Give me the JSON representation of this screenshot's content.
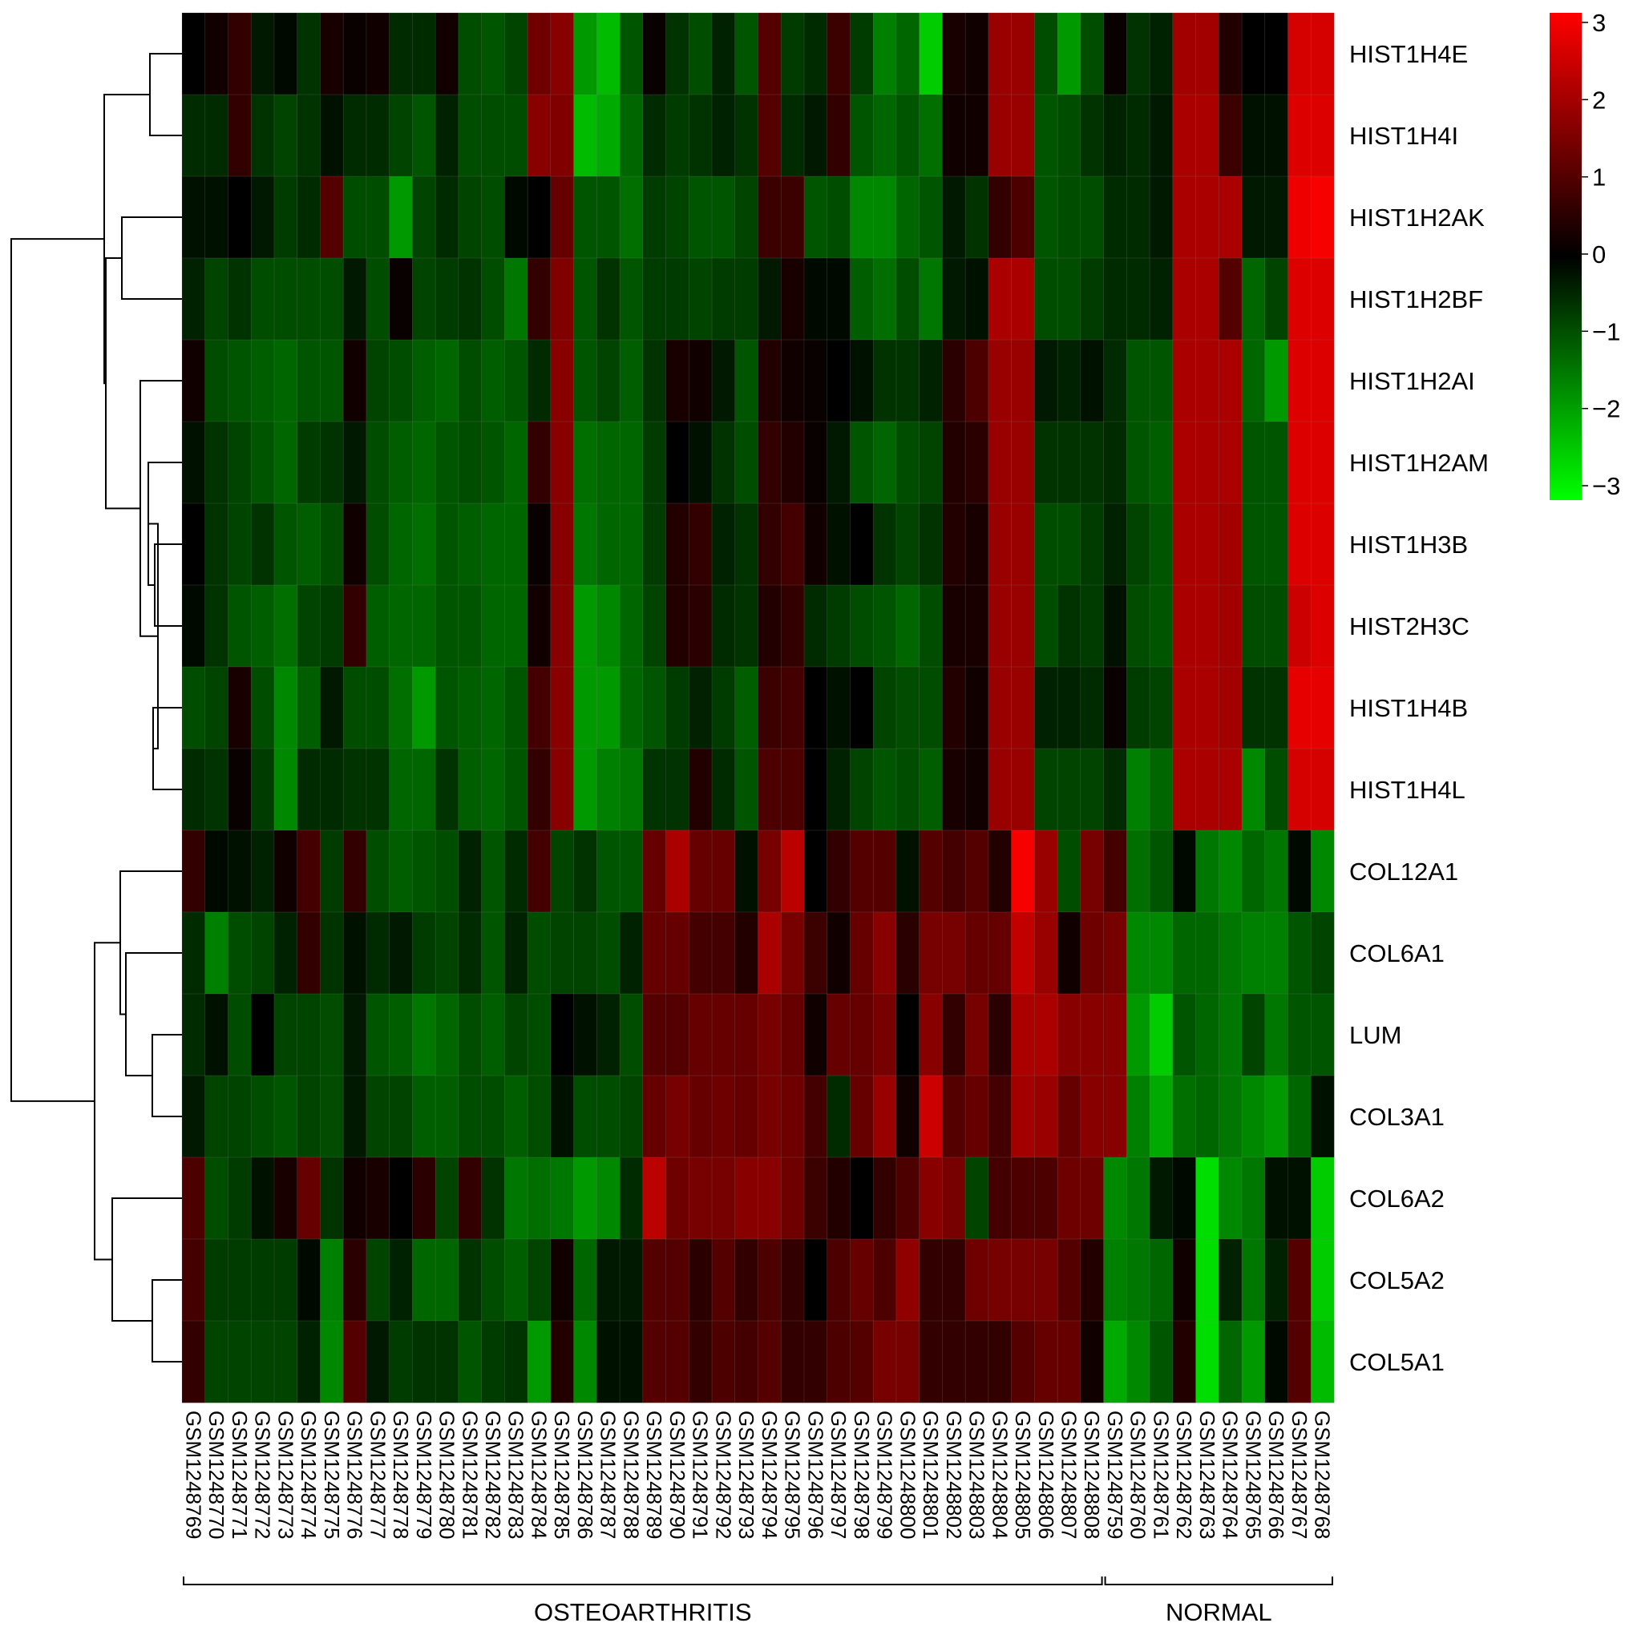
{
  "chart_data": {
    "type": "heatmap",
    "title": "",
    "xlabel": "",
    "ylabel": "",
    "rows": [
      "HIST1H4E",
      "HIST1H4I",
      "HIST1H2AK",
      "HIST1H2BF",
      "HIST1H2AI",
      "HIST1H2AM",
      "HIST1H3B",
      "HIST2H3C",
      "HIST1H4B",
      "HIST1H4L",
      "COL12A1",
      "COL6A1",
      "LUM",
      "COL3A1",
      "COL6A2",
      "COL5A2",
      "COL5A1"
    ],
    "columns": [
      "GSM1248769",
      "GSM1248770",
      "GSM1248771",
      "GSM1248772",
      "GSM1248773",
      "GSM1248774",
      "GSM1248775",
      "GSM1248776",
      "GSM1248777",
      "GSM1248778",
      "GSM1248779",
      "GSM1248780",
      "GSM1248781",
      "GSM1248782",
      "GSM1248783",
      "GSM1248784",
      "GSM1248785",
      "GSM1248786",
      "GSM1248787",
      "GSM1248788",
      "GSM1248789",
      "GSM1248790",
      "GSM1248791",
      "GSM1248792",
      "GSM1248793",
      "GSM1248794",
      "GSM1248795",
      "GSM1248796",
      "GSM1248797",
      "GSM1248798",
      "GSM1248799",
      "GSM1248800",
      "GSM1248801",
      "GSM1248802",
      "GSM1248803",
      "GSM1248804",
      "GSM1248805",
      "GSM1248806",
      "GSM1248807",
      "GSM1248808",
      "GSM1248759",
      "GSM1248760",
      "GSM1248761",
      "GSM1248762",
      "GSM1248763",
      "GSM1248764",
      "GSM1248765",
      "GSM1248766",
      "GSM1248767",
      "GSM1248768"
    ],
    "groups": [
      {
        "label": "OSTEOARTHRITIS",
        "start": 0,
        "end": 39
      },
      {
        "label": "NORMAL",
        "start": 40,
        "end": 49
      }
    ],
    "values": [
      [
        0.0,
        0.2,
        0.6,
        -0.3,
        -0.1,
        -0.6,
        0.3,
        0.1,
        0.2,
        -0.5,
        -0.5,
        0.2,
        -0.9,
        -1.0,
        -0.8,
        1.3,
        1.6,
        -1.8,
        -2.2,
        -1.0,
        0.1,
        -0.6,
        -0.9,
        -0.4,
        -1.0,
        1.0,
        -0.7,
        -0.5,
        0.7,
        -0.7,
        -1.5,
        -1.2,
        -2.4,
        0.3,
        0.2,
        1.8,
        1.8,
        -0.9,
        -1.8,
        -0.9,
        0.1,
        -0.6,
        -0.4,
        1.9,
        1.9,
        0.4,
        0.0,
        0.0,
        2.5,
        2.5
      ],
      [
        -0.5,
        -0.5,
        0.6,
        -0.6,
        -0.8,
        -0.6,
        -0.2,
        -0.5,
        -0.5,
        -0.8,
        -1.0,
        -0.4,
        -0.9,
        -0.9,
        -0.9,
        1.6,
        1.5,
        -2.2,
        -2.0,
        -1.2,
        -0.5,
        -0.7,
        -0.6,
        -0.4,
        -0.6,
        1.0,
        -0.5,
        -0.3,
        0.6,
        -1.0,
        -1.2,
        -1.0,
        -1.3,
        0.2,
        0.2,
        1.8,
        1.8,
        -1.0,
        -0.9,
        -0.6,
        -0.4,
        -0.5,
        -0.3,
        2.0,
        2.0,
        0.7,
        -0.2,
        -0.2,
        2.6,
        2.6
      ],
      [
        -0.2,
        -0.2,
        0.0,
        -0.3,
        -0.7,
        -0.5,
        1.0,
        -0.9,
        -0.9,
        -1.8,
        -0.8,
        -0.5,
        -0.8,
        -0.9,
        -0.1,
        0.0,
        1.2,
        -1.0,
        -1.0,
        -1.3,
        -0.7,
        -0.8,
        -1.0,
        -1.0,
        -0.8,
        0.7,
        0.7,
        -1.0,
        -0.9,
        -1.6,
        -1.6,
        -1.2,
        -1.0,
        -0.3,
        -0.6,
        0.6,
        0.9,
        -1.0,
        -0.9,
        -0.9,
        -0.5,
        -0.5,
        -0.3,
        2.0,
        2.0,
        2.0,
        -0.3,
        -0.3,
        2.8,
        2.9
      ],
      [
        -0.4,
        -0.8,
        -0.6,
        -0.9,
        -0.9,
        -0.9,
        -0.9,
        -0.3,
        -0.9,
        0.1,
        -0.8,
        -0.7,
        -0.6,
        -0.9,
        -1.4,
        0.6,
        1.5,
        -1.0,
        -0.6,
        -1.0,
        -0.7,
        -0.7,
        -0.8,
        -0.7,
        -0.7,
        -0.3,
        0.3,
        -0.1,
        -0.1,
        -1.1,
        -1.3,
        -0.9,
        -1.4,
        -0.3,
        -0.2,
        2.0,
        2.0,
        -0.9,
        -0.9,
        -0.7,
        -0.5,
        -0.5,
        -0.4,
        2.0,
        2.0,
        1.0,
        -1.2,
        -0.8,
        2.6,
        2.6
      ],
      [
        0.2,
        -0.9,
        -1.0,
        -1.1,
        -1.2,
        -1.0,
        -1.0,
        0.2,
        -0.8,
        -0.9,
        -1.1,
        -1.2,
        -0.9,
        -1.1,
        -1.0,
        -0.5,
        1.6,
        -1.0,
        -0.8,
        -1.1,
        -0.6,
        0.3,
        0.2,
        -0.3,
        -1.0,
        0.4,
        0.2,
        0.1,
        0.0,
        -0.2,
        -0.6,
        -0.6,
        -0.4,
        0.5,
        0.9,
        1.8,
        1.8,
        -0.3,
        -0.4,
        -0.2,
        -0.5,
        -1.0,
        -1.0,
        2.0,
        2.0,
        2.0,
        -1.2,
        -1.8,
        2.6,
        2.6
      ],
      [
        -0.2,
        -0.6,
        -0.8,
        -1.0,
        -1.2,
        -0.7,
        -0.6,
        -0.3,
        -0.9,
        -1.1,
        -1.2,
        -1.0,
        -0.9,
        -1.0,
        -1.2,
        0.6,
        1.6,
        -1.3,
        -1.2,
        -1.2,
        -0.7,
        0.0,
        -0.2,
        -0.6,
        -0.9,
        0.6,
        0.4,
        0.1,
        -0.3,
        -1.0,
        -1.2,
        -0.9,
        -0.8,
        0.4,
        0.5,
        1.8,
        1.8,
        -0.6,
        -0.6,
        -0.6,
        -0.5,
        -1.0,
        -1.1,
        2.0,
        2.0,
        2.0,
        -1.0,
        -1.0,
        2.6,
        2.6
      ],
      [
        0.0,
        -0.6,
        -0.8,
        -0.6,
        -1.0,
        -1.1,
        -0.9,
        0.2,
        -0.9,
        -1.2,
        -1.3,
        -1.0,
        -1.1,
        -1.2,
        -1.2,
        0.1,
        1.6,
        -1.4,
        -1.2,
        -1.2,
        -0.7,
        0.4,
        0.6,
        -0.4,
        -0.6,
        0.6,
        0.8,
        0.2,
        -0.2,
        0.0,
        -0.6,
        -0.8,
        -0.6,
        0.4,
        0.3,
        1.8,
        1.8,
        -0.9,
        -0.9,
        -0.7,
        -0.4,
        -0.8,
        -1.0,
        2.0,
        2.0,
        1.9,
        -1.0,
        -1.0,
        2.6,
        2.6
      ],
      [
        -0.1,
        -0.6,
        -1.0,
        -1.1,
        -1.3,
        -0.8,
        -0.7,
        0.6,
        -1.1,
        -1.2,
        -1.2,
        -1.0,
        -1.0,
        -1.2,
        -1.2,
        0.2,
        1.6,
        -1.8,
        -1.6,
        -1.2,
        -0.8,
        0.4,
        0.5,
        -0.5,
        -0.6,
        0.4,
        0.6,
        -0.5,
        -0.7,
        -0.9,
        -1.0,
        -1.2,
        -0.9,
        0.3,
        0.3,
        1.8,
        1.8,
        -0.9,
        -0.6,
        -0.7,
        -0.2,
        -0.9,
        -1.0,
        2.0,
        2.0,
        1.9,
        -0.9,
        -0.9,
        2.4,
        2.6
      ],
      [
        -0.9,
        -0.8,
        0.3,
        -0.9,
        -1.6,
        -1.1,
        -0.3,
        -0.9,
        -0.9,
        -1.3,
        -1.8,
        -1.0,
        -1.1,
        -1.2,
        -1.0,
        0.8,
        1.6,
        -1.8,
        -1.8,
        -1.2,
        -1.0,
        -0.7,
        -0.4,
        -0.7,
        -1.1,
        0.7,
        0.8,
        0.0,
        -0.2,
        0.0,
        -0.8,
        -0.9,
        -0.9,
        0.4,
        0.2,
        1.8,
        1.8,
        -0.4,
        -0.4,
        -0.5,
        0.1,
        -0.7,
        -0.8,
        2.0,
        2.0,
        1.9,
        -0.6,
        -0.6,
        2.7,
        2.7
      ],
      [
        -0.5,
        -0.6,
        0.1,
        -0.7,
        -1.6,
        -0.5,
        -0.5,
        -0.6,
        -0.6,
        -1.2,
        -1.2,
        -0.6,
        -1.1,
        -1.2,
        -1.0,
        0.6,
        1.6,
        -1.8,
        -1.5,
        -1.4,
        -0.6,
        -0.6,
        0.4,
        -0.5,
        -1.0,
        0.9,
        0.9,
        0.0,
        -0.4,
        -0.8,
        -1.0,
        -0.9,
        -1.1,
        0.3,
        0.2,
        1.8,
        1.8,
        -0.8,
        -0.8,
        -0.8,
        -0.5,
        -1.5,
        -1.2,
        2.0,
        2.0,
        2.0,
        -1.6,
        -0.9,
        2.5,
        2.5
      ],
      [
        0.6,
        -0.1,
        -0.2,
        -0.4,
        0.2,
        0.8,
        -0.7,
        0.6,
        -0.9,
        -1.1,
        -1.0,
        -0.9,
        -0.4,
        -1.0,
        -0.5,
        0.8,
        -0.8,
        -0.6,
        -1.0,
        -1.0,
        1.2,
        2.0,
        1.2,
        1.2,
        -0.2,
        1.4,
        2.2,
        0.0,
        0.6,
        1.0,
        1.0,
        -0.2,
        1.0,
        0.8,
        1.0,
        0.4,
        2.9,
        1.8,
        -0.9,
        1.4,
        0.8,
        -1.3,
        -1.0,
        -0.1,
        -1.4,
        -1.6,
        -1.2,
        -1.4,
        -0.1,
        -1.6
      ],
      [
        -0.5,
        -1.5,
        -0.9,
        -0.8,
        -0.4,
        0.6,
        -0.6,
        -0.2,
        -0.5,
        -0.3,
        -0.7,
        -0.8,
        -0.5,
        -1.0,
        -0.4,
        -0.9,
        -0.8,
        -0.8,
        -0.9,
        -0.4,
        1.2,
        1.2,
        0.8,
        0.8,
        0.4,
        2.0,
        1.4,
        0.7,
        0.2,
        1.2,
        1.6,
        0.5,
        1.4,
        1.4,
        1.2,
        1.2,
        2.3,
        1.8,
        0.2,
        1.3,
        1.4,
        -1.6,
        -1.6,
        -1.2,
        -1.2,
        -1.4,
        -1.5,
        -1.5,
        -1.0,
        -0.8
      ],
      [
        -0.5,
        -0.2,
        -0.9,
        0.0,
        -0.8,
        -0.8,
        -0.9,
        -0.3,
        -1.0,
        -1.1,
        -1.4,
        -1.2,
        -0.9,
        -1.1,
        -0.8,
        -0.9,
        0.0,
        -0.2,
        -0.4,
        -0.9,
        1.0,
        1.0,
        1.2,
        1.2,
        1.2,
        1.4,
        1.2,
        0.2,
        1.2,
        1.2,
        1.4,
        0.0,
        1.6,
        0.6,
        1.4,
        0.5,
        2.0,
        2.0,
        1.6,
        1.6,
        1.6,
        -1.8,
        -2.4,
        -1.0,
        -1.2,
        -1.4,
        -0.8,
        -1.4,
        -1.0,
        -1.0
      ],
      [
        -0.3,
        -0.8,
        -0.8,
        -0.9,
        -1.0,
        -0.8,
        -0.9,
        -0.3,
        -0.8,
        -0.8,
        -1.1,
        -1.1,
        -0.9,
        -0.9,
        -1.1,
        -0.9,
        -0.2,
        -0.9,
        -0.9,
        -0.8,
        1.2,
        1.4,
        1.2,
        1.3,
        1.2,
        1.4,
        1.3,
        0.8,
        -0.5,
        1.2,
        1.8,
        0.2,
        2.4,
        1.0,
        1.2,
        0.8,
        1.9,
        1.8,
        1.2,
        1.6,
        1.6,
        -1.5,
        -2.0,
        -1.3,
        -1.2,
        -1.4,
        -1.6,
        -1.8,
        -1.2,
        -0.2
      ],
      [
        0.9,
        -0.9,
        -0.7,
        -0.2,
        0.3,
        1.2,
        -0.6,
        0.2,
        0.3,
        0.0,
        0.5,
        -0.8,
        0.6,
        -0.6,
        -1.4,
        -1.3,
        -1.4,
        -1.8,
        -1.6,
        -0.5,
        2.2,
        1.3,
        1.4,
        1.4,
        1.6,
        1.6,
        1.3,
        0.7,
        0.4,
        0.0,
        0.6,
        0.9,
        1.6,
        1.4,
        -0.8,
        0.8,
        0.9,
        0.9,
        1.3,
        1.3,
        -1.6,
        -1.4,
        -0.3,
        -0.1,
        -2.6,
        -1.6,
        -1.4,
        -0.2,
        -0.2,
        -2.4
      ],
      [
        0.8,
        -0.7,
        -0.7,
        -0.7,
        -0.7,
        -0.1,
        -1.5,
        0.5,
        -0.8,
        -0.4,
        -1.2,
        -1.2,
        -0.6,
        -0.9,
        -1.1,
        -0.8,
        0.2,
        -1.2,
        -0.3,
        -0.3,
        1.0,
        1.0,
        0.5,
        1.0,
        0.6,
        0.9,
        0.6,
        0.0,
        0.9,
        1.2,
        0.9,
        1.7,
        0.6,
        0.6,
        1.3,
        1.4,
        1.4,
        1.4,
        1.0,
        0.4,
        -1.5,
        -1.4,
        -1.2,
        0.2,
        -2.6,
        -0.4,
        -1.4,
        -0.4,
        1.0,
        -2.4
      ],
      [
        0.6,
        -0.8,
        -0.8,
        -0.8,
        -0.8,
        -0.4,
        -1.6,
        1.0,
        -0.3,
        -0.7,
        -0.6,
        -0.6,
        -1.0,
        -0.7,
        -0.6,
        -1.8,
        0.4,
        -1.6,
        -0.2,
        -0.2,
        1.0,
        1.0,
        0.6,
        0.9,
        0.8,
        1.0,
        0.6,
        0.6,
        0.9,
        1.0,
        1.4,
        1.4,
        0.6,
        0.6,
        0.6,
        0.6,
        1.0,
        1.2,
        1.2,
        0.2,
        -2.0,
        -1.6,
        -1.0,
        0.4,
        -2.6,
        -1.2,
        -1.8,
        -0.1,
        1.0,
        -2.2
      ]
    ],
    "color_scale": {
      "min": -3,
      "max": 3,
      "low": "#00ff00",
      "mid": "#000000",
      "high": "#ff0000"
    },
    "legend_ticks": [
      "3",
      "2",
      "1",
      "0",
      "−1",
      "−2",
      "−3"
    ],
    "legend_placement": "top-right",
    "dendrogram": "rows"
  }
}
